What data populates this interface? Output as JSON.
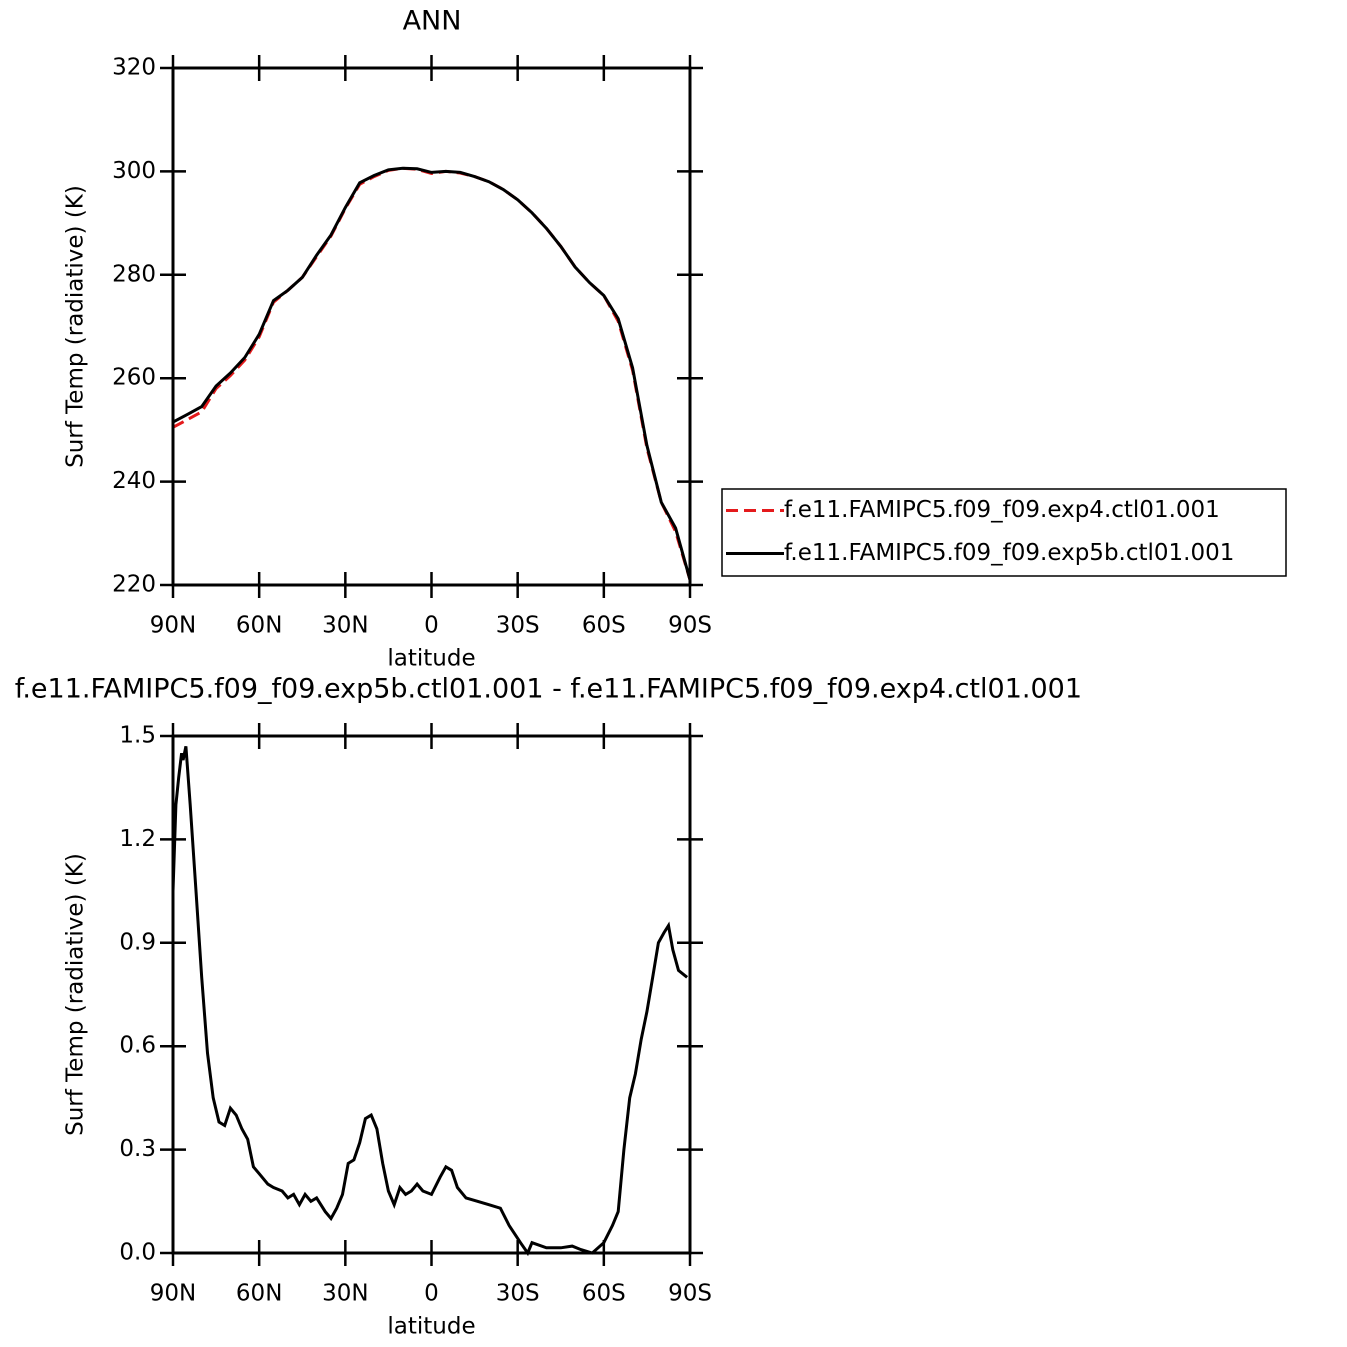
{
  "chart_data": [
    {
      "type": "line",
      "title": "ANN",
      "xlabel": "latitude",
      "ylabel": "Surf Temp (radiative) (K)",
      "x": [
        90,
        85,
        80,
        75,
        70,
        65,
        60,
        55,
        50,
        45,
        40,
        35,
        30,
        25,
        20,
        15,
        10,
        5,
        0,
        -5,
        -10,
        -15,
        -20,
        -25,
        -30,
        -35,
        -40,
        -45,
        -50,
        -55,
        -60,
        -65,
        -70,
        -75,
        -80,
        -85,
        -90
      ],
      "series": [
        {
          "name": "f.e11.FAMIPC5.f09_f09.exp4.ctl01.001",
          "color": "#e41a1c",
          "line_style": "dashed",
          "values": [
            250.5,
            252,
            253.5,
            258,
            260.5,
            263.5,
            268,
            274.7,
            277,
            279.5,
            283.5,
            287.5,
            292.8,
            297.5,
            299,
            300.2,
            300.6,
            300.4,
            299.6,
            300,
            299.7,
            299,
            298,
            296.5,
            294.5,
            292,
            289,
            285.5,
            281.5,
            278.5,
            276,
            271,
            261.5,
            246.5,
            236,
            230.3,
            221
          ]
        },
        {
          "name": "f.e11.FAMIPC5.f09_f09.exp5b.ctl01.001",
          "color": "#000000",
          "line_style": "solid",
          "values": [
            251.5,
            253,
            254.5,
            258.5,
            261,
            264,
            268.5,
            275,
            277,
            279.5,
            283.8,
            287.7,
            293,
            297.8,
            299.2,
            300.3,
            300.6,
            300.5,
            299.8,
            300,
            299.8,
            299,
            298,
            296.5,
            294.5,
            292,
            289,
            285.5,
            281.5,
            278.5,
            276,
            271.5,
            262,
            247,
            236,
            231,
            221
          ]
        }
      ],
      "xlim": [
        90,
        -90
      ],
      "xticks": [
        {
          "value": 90,
          "label": "90N"
        },
        {
          "value": 60,
          "label": "60N"
        },
        {
          "value": 30,
          "label": "30N"
        },
        0,
        {
          "value": -30,
          "label": "30S"
        },
        {
          "value": -60,
          "label": "60S"
        },
        {
          "value": -90,
          "label": "90S"
        }
      ],
      "ylim": [
        220,
        320
      ],
      "yticks": [
        220,
        240,
        260,
        280,
        300,
        320
      ],
      "grid": false,
      "legend": "outside-right"
    },
    {
      "type": "line",
      "title": "f.e11.FAMIPC5.f09_f09.exp5b.ctl01.001 - f.e11.FAMIPC5.f09_f09.exp4.ctl01.001",
      "xlabel": "latitude",
      "ylabel": "Surf Temp (radiative) (K)",
      "color": "#000000",
      "line_style": "solid",
      "x": [
        90,
        89,
        88,
        87,
        86.5,
        85.5,
        84,
        82,
        80,
        78,
        76,
        74,
        72,
        70,
        68,
        66,
        64,
        62,
        60,
        57,
        55,
        52,
        50,
        48,
        46,
        44,
        42,
        40,
        37,
        35,
        33,
        31,
        29,
        27,
        25,
        23,
        21,
        19,
        17,
        15,
        13,
        11,
        9,
        7,
        5,
        3,
        0,
        -3,
        -5,
        -7,
        -9,
        -12,
        -16,
        -20,
        -24,
        -27,
        -31,
        -33.5,
        -35,
        -40,
        -45,
        -49,
        -52,
        -56,
        -60,
        -63,
        -65,
        -67,
        -69,
        -71,
        -73,
        -75,
        -77,
        -79,
        -81,
        -82.5,
        -84,
        -86,
        -89
      ],
      "values": [
        1.05,
        1.3,
        1.38,
        1.45,
        1.43,
        1.47,
        1.3,
        1.05,
        0.8,
        0.58,
        0.45,
        0.38,
        0.37,
        0.42,
        0.4,
        0.36,
        0.33,
        0.25,
        0.23,
        0.2,
        0.19,
        0.18,
        0.16,
        0.17,
        0.14,
        0.17,
        0.15,
        0.16,
        0.12,
        0.1,
        0.13,
        0.17,
        0.26,
        0.27,
        0.32,
        0.39,
        0.4,
        0.36,
        0.26,
        0.18,
        0.14,
        0.19,
        0.17,
        0.18,
        0.2,
        0.18,
        0.17,
        0.22,
        0.25,
        0.24,
        0.19,
        0.16,
        0.15,
        0.14,
        0.13,
        0.08,
        0.03,
        0,
        0.03,
        0.015,
        0.015,
        0.02,
        0.01,
        0,
        0.03,
        0.08,
        0.12,
        0.3,
        0.45,
        0.52,
        0.62,
        0.7,
        0.8,
        0.9,
        0.93,
        0.95,
        0.88,
        0.82,
        0.8
      ],
      "xlim": [
        90,
        -90
      ],
      "xticks": [
        {
          "value": 90,
          "label": "90N"
        },
        {
          "value": 60,
          "label": "60N"
        },
        {
          "value": 30,
          "label": "30N"
        },
        0,
        {
          "value": -30,
          "label": "30S"
        },
        {
          "value": -60,
          "label": "60S"
        },
        {
          "value": -90,
          "label": "90S"
        }
      ],
      "ylim": [
        0,
        1.5
      ],
      "yticks": [
        {
          "value": 0,
          "label": "0.0"
        },
        0.3,
        0.6,
        0.9,
        1.2,
        1.5
      ],
      "grid": false
    }
  ]
}
